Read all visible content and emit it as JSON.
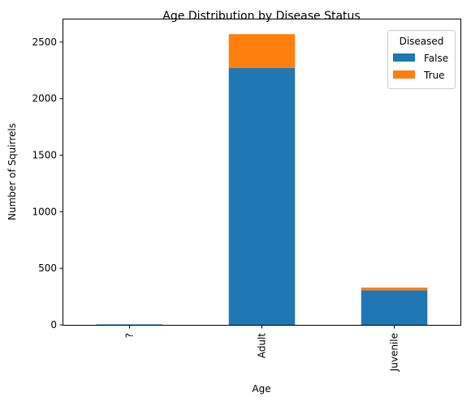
{
  "chart_data": {
    "type": "bar",
    "stacked": true,
    "title": "Age Distribution by Disease Status",
    "xlabel": "Age",
    "ylabel": "Number of Squirrels",
    "categories": [
      "?",
      "Adult",
      "Juvenile"
    ],
    "series": [
      {
        "name": "False",
        "values": [
          4,
          2270,
          305
        ],
        "color": "#1f77b4"
      },
      {
        "name": "True",
        "values": [
          0,
          300,
          25
        ],
        "color": "#ff7f0e"
      }
    ],
    "ylim": [
      0,
      2700
    ],
    "yticks": [
      0,
      500,
      1000,
      1500,
      2000,
      2500
    ],
    "grid": false,
    "legend": {
      "title": "Diseased",
      "placement": "top-right"
    }
  }
}
